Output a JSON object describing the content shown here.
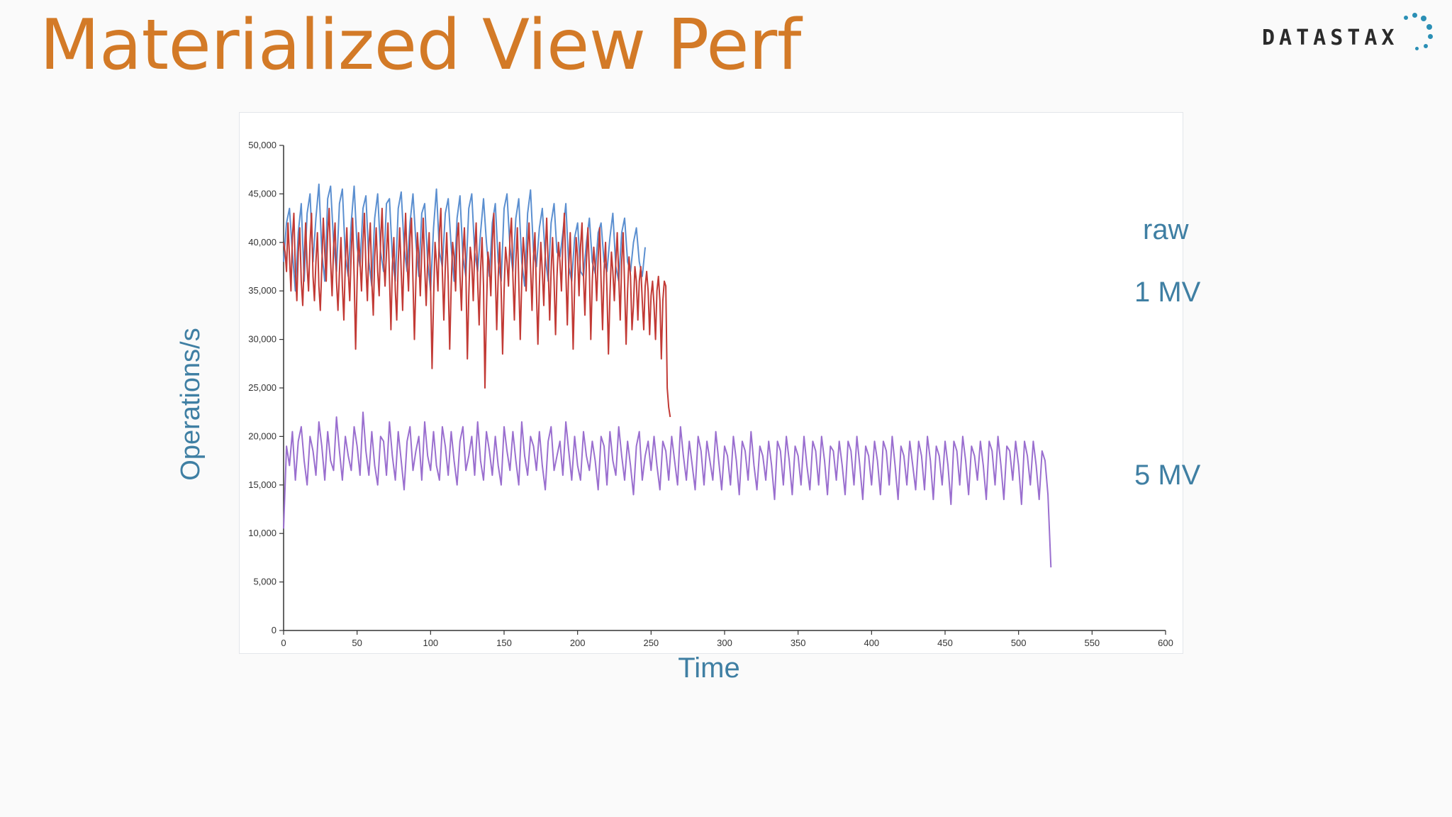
{
  "slide": {
    "title": "Materialized View Perf",
    "title_color": "#d37a27",
    "logo_text": "DATASTAX",
    "logo_dot_color": "#2a8fb5"
  },
  "chart_data": {
    "type": "line",
    "xlabel": "Time",
    "ylabel": "Operations/s",
    "label_color": "#3f7fa3",
    "xlim": [
      0,
      600
    ],
    "ylim": [
      0,
      50000
    ],
    "x_ticks": [
      0,
      50,
      100,
      150,
      200,
      250,
      300,
      350,
      400,
      450,
      500,
      550,
      600
    ],
    "y_ticks": [
      0,
      5000,
      10000,
      15000,
      20000,
      25000,
      30000,
      35000,
      40000,
      45000,
      50000
    ],
    "x_tick_labels": [
      "0",
      "50",
      "100",
      "150",
      "200",
      "250",
      "300",
      "350",
      "400",
      "450",
      "500",
      "550",
      "600"
    ],
    "y_tick_labels": [
      "0",
      "5,000",
      "10,000",
      "15,000",
      "20,000",
      "25,000",
      "30,000",
      "35,000",
      "40,000",
      "45,000",
      "50,000"
    ],
    "grid": false,
    "legend": "right",
    "series": [
      {
        "name": "raw",
        "color": "#5b8fd0",
        "x_start": 0,
        "x_step": 2,
        "values": [
          38000,
          42000,
          43500,
          39000,
          35000,
          41000,
          44000,
          36000,
          43000,
          45000,
          38000,
          42500,
          46000,
          39000,
          36000,
          44500,
          45800,
          40000,
          37000,
          44000,
          45500,
          38500,
          36500,
          42000,
          45800,
          39500,
          37500,
          43500,
          44800,
          38000,
          35500,
          42500,
          45000,
          39000,
          37000,
          44000,
          44500,
          38500,
          36000,
          43500,
          45200,
          39500,
          37000,
          42000,
          45000,
          40000,
          36500,
          43000,
          44000,
          38000,
          35000,
          41500,
          45500,
          39000,
          37500,
          43000,
          44500,
          39500,
          36000,
          42500,
          44800,
          38500,
          36500,
          43500,
          45000,
          39000,
          37000,
          41000,
          44500,
          40000,
          36500,
          42000,
          44000,
          38000,
          36000,
          43500,
          45000,
          39500,
          37000,
          42500,
          44500,
          38000,
          35500,
          43000,
          45400,
          39000,
          37500,
          41500,
          43500,
          38500,
          36000,
          42000,
          44000,
          39000,
          38500,
          41000,
          44000,
          37500,
          36000,
          40500,
          42000,
          37000,
          36500,
          40000,
          42500,
          38000,
          36800,
          41000,
          42000,
          38000,
          37000,
          40500,
          43000,
          37500,
          36000,
          41000,
          42500,
          38000,
          37000,
          40000,
          41500,
          38000,
          36500,
          39500
        ]
      },
      {
        "name": "1 MV",
        "color": "#c23a35",
        "x_start": 0,
        "x_step": 1,
        "values": [
          40000,
          39000,
          37000,
          42000,
          38500,
          35000,
          40500,
          43000,
          37000,
          34000,
          39000,
          41500,
          36000,
          33500,
          38000,
          42000,
          37500,
          35000,
          40000,
          43000,
          36500,
          34000,
          38000,
          41000,
          35500,
          33000,
          37500,
          42500,
          39000,
          36000,
          41000,
          43500,
          38000,
          34500,
          39500,
          42000,
          36000,
          33000,
          37000,
          40500,
          35500,
          32000,
          38000,
          41500,
          37000,
          34000,
          39000,
          42500,
          36500,
          29000,
          36000,
          41000,
          38000,
          35000,
          40000,
          43000,
          37500,
          34000,
          39500,
          42000,
          36000,
          32500,
          38500,
          41500,
          37000,
          34500,
          40000,
          43500,
          38500,
          35500,
          39000,
          42000,
          36500,
          31000,
          37500,
          40500,
          35000,
          32000,
          38000,
          41500,
          37000,
          33000,
          39000,
          43000,
          38000,
          35000,
          40500,
          42500,
          36000,
          30000,
          36000,
          41000,
          38500,
          34500,
          39000,
          42500,
          37500,
          33500,
          38000,
          41000,
          35500,
          27000,
          34000,
          40000,
          38000,
          35000,
          41000,
          43500,
          37000,
          32000,
          37500,
          41000,
          36000,
          29000,
          35500,
          40000,
          38500,
          35000,
          40500,
          42000,
          36500,
          33000,
          38500,
          41500,
          37000,
          28000,
          34500,
          39500,
          38000,
          34000,
          39000,
          42000,
          36000,
          31500,
          37000,
          40500,
          35500,
          25000,
          33000,
          39000,
          37500,
          34500,
          40000,
          43000,
          37000,
          31000,
          36500,
          40000,
          35000,
          28500,
          35000,
          39500,
          38000,
          35500,
          40500,
          42500,
          36500,
          32000,
          38000,
          41500,
          36000,
          30000,
          36000,
          40500,
          38500,
          35000,
          39500,
          42000,
          37500,
          33000,
          38500,
          41000,
          35000,
          29500,
          35500,
          40000,
          37000,
          33500,
          39000,
          42500,
          37500,
          32000,
          37000,
          40500,
          36000,
          30500,
          36500,
          40000,
          38000,
          35000,
          40000,
          43000,
          37000,
          31500,
          37500,
          41000,
          35500,
          29000,
          35500,
          40500,
          38500,
          34500,
          39500,
          42000,
          36500,
          32500,
          38000,
          41500,
          37000,
          30000,
          36000,
          39500,
          37500,
          34000,
          38500,
          41500,
          36000,
          31000,
          37000,
          40000,
          35000,
          28500,
          34500,
          39000,
          37000,
          34000,
          38000,
          41000,
          36500,
          32000,
          38000,
          41000,
          35500,
          29500,
          35000,
          38500,
          36500,
          31000,
          33500,
          37500,
          36000,
          32000,
          36000,
          37500,
          34000,
          31000,
          35500,
          37000,
          35000,
          30500,
          34500,
          36000,
          33500,
          30000,
          35000,
          36500,
          34000,
          28000,
          34000,
          36000,
          35500,
          25000,
          23000,
          22000
        ],
        "note_values_end": "series ends near x=280"
      },
      {
        "name": "5 MV",
        "color": "#9a6fcf",
        "x_start": 0,
        "x_step": 2,
        "values": [
          10500,
          19000,
          17000,
          20500,
          15500,
          19500,
          21000,
          17500,
          15000,
          20000,
          18500,
          16000,
          21500,
          19000,
          15500,
          20500,
          17500,
          16500,
          22000,
          18500,
          15500,
          20000,
          18000,
          16500,
          21000,
          19000,
          16000,
          22500,
          18500,
          16000,
          20500,
          17000,
          15000,
          20000,
          19500,
          16000,
          21500,
          18000,
          15500,
          20500,
          17500,
          14500,
          19500,
          21000,
          16500,
          18500,
          20000,
          15500,
          21500,
          18000,
          16500,
          20500,
          17000,
          15500,
          21000,
          19000,
          16000,
          20500,
          17500,
          15000,
          19500,
          21000,
          16500,
          18000,
          20000,
          16000,
          21500,
          17500,
          15500,
          20500,
          18500,
          16000,
          20000,
          17000,
          15000,
          21000,
          18500,
          16500,
          20500,
          17500,
          15000,
          21500,
          18000,
          16000,
          20000,
          19000,
          16500,
          20500,
          17000,
          14500,
          19500,
          21000,
          16500,
          18000,
          19500,
          16000,
          21500,
          18500,
          15500,
          20000,
          17000,
          15500,
          20500,
          18000,
          16500,
          19500,
          17500,
          14500,
          20000,
          19000,
          15000,
          20500,
          17500,
          16000,
          21000,
          18000,
          15500,
          19500,
          17000,
          14000,
          19000,
          20500,
          15500,
          18000,
          19500,
          16500,
          20000,
          17000,
          14500,
          19500,
          18500,
          15500,
          20000,
          17500,
          15000,
          21000,
          18000,
          15500,
          19500,
          17000,
          14500,
          20000,
          18500,
          15000,
          19500,
          17500,
          15500,
          20500,
          17500,
          14500,
          19000,
          18000,
          15000,
          20000,
          17500,
          14000,
          19500,
          18500,
          15500,
          20500,
          17000,
          14500,
          19000,
          18000,
          15500,
          19500,
          17000,
          13500,
          19500,
          18500,
          15000,
          20000,
          17500,
          14000,
          19000,
          18000,
          15000,
          20000,
          17000,
          14500,
          19500,
          18500,
          15000,
          20000,
          17500,
          14000,
          19000,
          18500,
          15500,
          19500,
          17000,
          14000,
          19500,
          18500,
          15000,
          20000,
          17000,
          13500,
          19000,
          18000,
          15000,
          19500,
          17500,
          14000,
          19500,
          18500,
          15000,
          20000,
          17000,
          13500,
          19000,
          18000,
          15000,
          19500,
          17000,
          14500,
          19500,
          18000,
          14500,
          20000,
          17500,
          13500,
          19000,
          18000,
          15000,
          19500,
          17000,
          13000,
          19500,
          18500,
          15000,
          20000,
          17500,
          14000,
          19000,
          18000,
          15500,
          19500,
          17000,
          13500,
          19500,
          18500,
          15000,
          20000,
          17000,
          13500,
          19000,
          18500,
          15500,
          19500,
          17000,
          13000,
          19500,
          18000,
          15000,
          19500,
          17000,
          13500,
          18500,
          17500,
          14000,
          6500
        ]
      }
    ]
  }
}
